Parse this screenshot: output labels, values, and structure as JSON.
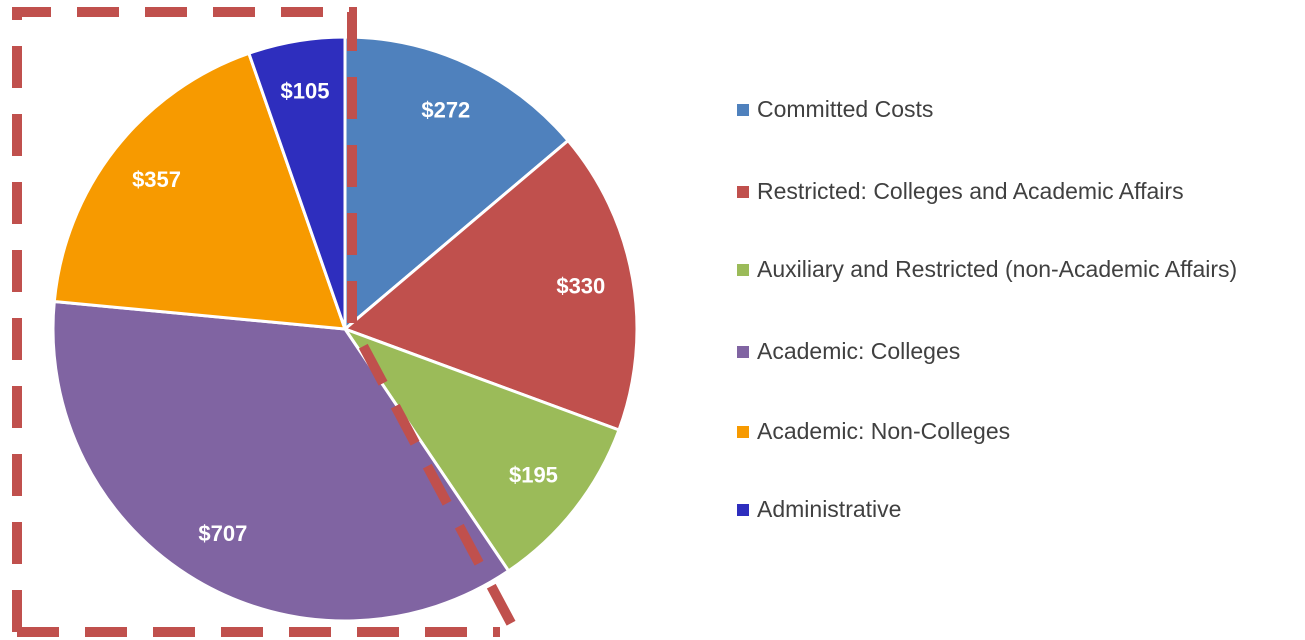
{
  "chart_data": {
    "type": "pie",
    "categories": [
      "Committed Costs",
      "Restricted: Colleges and Academic Affairs",
      "Auxiliary and Restricted (non-Academic Affairs)",
      "Academic: Colleges",
      "Academic: Non-Colleges",
      "Administrative"
    ],
    "values": [
      272,
      330,
      195,
      707,
      357,
      105
    ],
    "value_labels": [
      "$272",
      "$330",
      "$195",
      "$707",
      "$357",
      "$105"
    ],
    "colors": [
      "#4f81bd",
      "#c0504d",
      "#9bbb59",
      "#8064a2",
      "#f79a00",
      "#2e2ebe"
    ],
    "legend": "right"
  }
}
